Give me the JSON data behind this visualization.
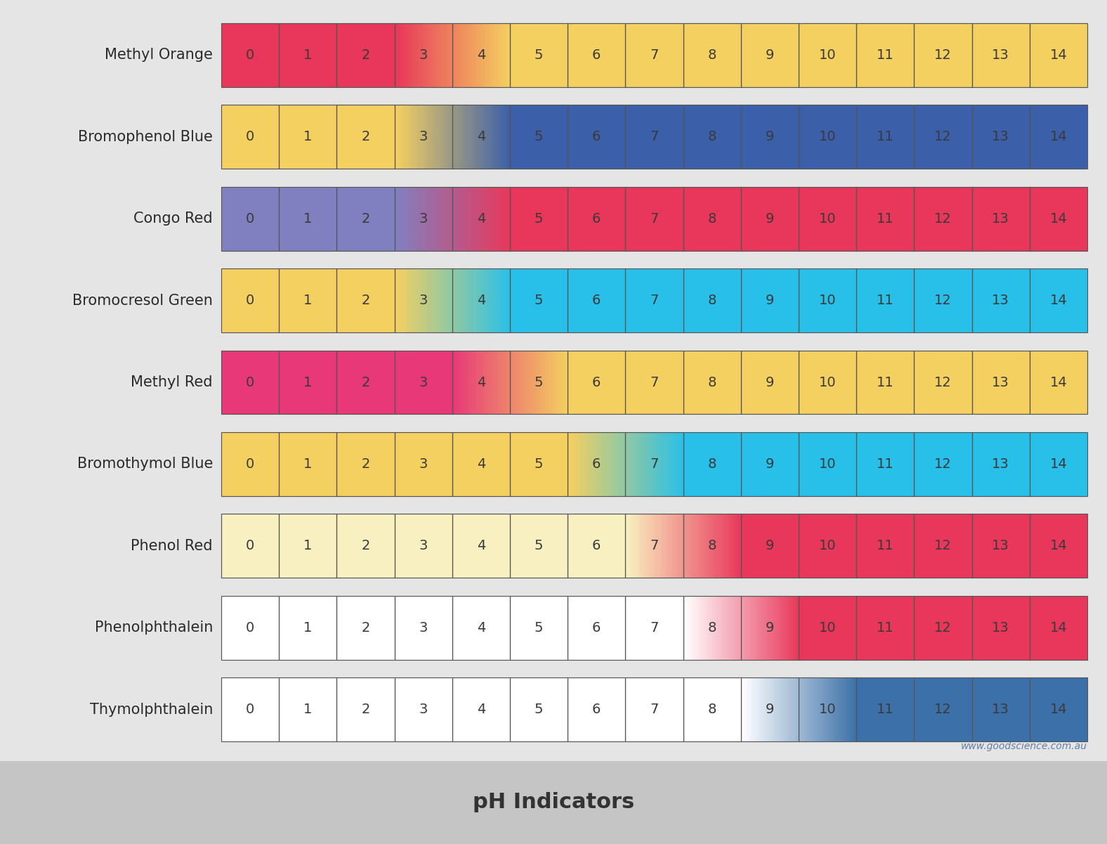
{
  "title": "pH Indicators",
  "bg_color": "#e5e5e5",
  "watermark": "www.goodscience.com.au",
  "indicators": [
    {
      "name": "Methyl Orange",
      "cell_colors": [
        "#E8375A",
        "#E8375A",
        "#E8375A",
        "#E8375A",
        "#F4935A",
        "#F4D060",
        "#F4D060",
        "#F4D060",
        "#F4D060",
        "#F4D060",
        "#F4D060",
        "#F4D060",
        "#F4D060",
        "#F4D060",
        "#F4D060"
      ],
      "gradients": [
        [
          3,
          5,
          "#E8375A",
          "#F4D060"
        ]
      ]
    },
    {
      "name": "Bromophenol Blue",
      "cell_colors": [
        "#F4D060",
        "#F4D060",
        "#F4D060",
        "#F4D060",
        "#88B8D0",
        "#3B5FA8",
        "#3B5FA8",
        "#3B5FA8",
        "#3B5FA8",
        "#3B5FA8",
        "#3B5FA8",
        "#3B5FA8",
        "#3B5FA8",
        "#3B5FA8",
        "#3B5FA8"
      ],
      "gradients": [
        [
          3,
          5,
          "#F4D060",
          "#3B5FA8"
        ]
      ]
    },
    {
      "name": "Congo Red",
      "cell_colors": [
        "#8080C0",
        "#8080C0",
        "#8080C0",
        "#8080C0",
        "#A060A0",
        "#E8375A",
        "#E8375A",
        "#E8375A",
        "#E8375A",
        "#E8375A",
        "#E8375A",
        "#E8375A",
        "#E8375A",
        "#E8375A",
        "#E8375A"
      ],
      "gradients": [
        [
          3,
          5,
          "#8080C0",
          "#E8375A"
        ]
      ]
    },
    {
      "name": "Bromocresol Green",
      "cell_colors": [
        "#F4D060",
        "#F4D060",
        "#F4D060",
        "#F4D060",
        "#A8D870",
        "#28C0E8",
        "#28C0E8",
        "#28C0E8",
        "#28C0E8",
        "#28C0E8",
        "#28C0E8",
        "#28C0E8",
        "#28C0E8",
        "#28C0E8",
        "#28C0E8"
      ],
      "gradients": [
        [
          3,
          5,
          "#F4D060",
          "#28C0E8"
        ]
      ]
    },
    {
      "name": "Methyl Red",
      "cell_colors": [
        "#E83878",
        "#E83878",
        "#E83878",
        "#E83878",
        "#E83878",
        "#F4D060",
        "#F4D060",
        "#F4D060",
        "#F4D060",
        "#F4D060",
        "#F4D060",
        "#F4D060",
        "#F4D060",
        "#F4D060",
        "#F4D060"
      ],
      "gradients": [
        [
          4,
          6,
          "#E83878",
          "#F4D060"
        ]
      ]
    },
    {
      "name": "Bromothymol Blue",
      "cell_colors": [
        "#F4D060",
        "#F4D060",
        "#F4D060",
        "#F4D060",
        "#F4D060",
        "#F4D060",
        "#F4D060",
        "#78D0E8",
        "#28C0E8",
        "#28C0E8",
        "#28C0E8",
        "#28C0E8",
        "#28C0E8",
        "#28C0E8",
        "#28C0E8"
      ],
      "gradients": [
        [
          6,
          8,
          "#F4D060",
          "#28C0E8"
        ]
      ]
    },
    {
      "name": "Phenol Red",
      "cell_colors": [
        "#F8F0C0",
        "#F8F0C0",
        "#F8F0C0",
        "#F8F0C0",
        "#F8F0C0",
        "#F8F0C0",
        "#F8F0C0",
        "#F8F0C0",
        "#F090A8",
        "#E8375A",
        "#E8375A",
        "#E8375A",
        "#E8375A",
        "#E8375A",
        "#E8375A"
      ],
      "gradients": [
        [
          7,
          9,
          "#F8F0C0",
          "#E8375A"
        ]
      ]
    },
    {
      "name": "Phenolphthalein",
      "cell_colors": [
        "#FFFFFF",
        "#FFFFFF",
        "#FFFFFF",
        "#FFFFFF",
        "#FFFFFF",
        "#FFFFFF",
        "#FFFFFF",
        "#FFFFFF",
        "#FFFFFF",
        "#F0B0D0",
        "#E8375A",
        "#E8375A",
        "#E8375A",
        "#E8375A",
        "#E8375A"
      ],
      "gradients": [
        [
          8,
          10,
          "#FFFFFF",
          "#E8375A"
        ]
      ]
    },
    {
      "name": "Thymolphthalein",
      "cell_colors": [
        "#FFFFFF",
        "#FFFFFF",
        "#FFFFFF",
        "#FFFFFF",
        "#FFFFFF",
        "#FFFFFF",
        "#FFFFFF",
        "#FFFFFF",
        "#FFFFFF",
        "#FFFFFF",
        "#C8D8E8",
        "#3B70A8",
        "#3B70A8",
        "#3B70A8",
        "#3B70A8"
      ],
      "gradients": [
        [
          9,
          11,
          "#FFFFFF",
          "#3B70A8"
        ]
      ]
    }
  ]
}
